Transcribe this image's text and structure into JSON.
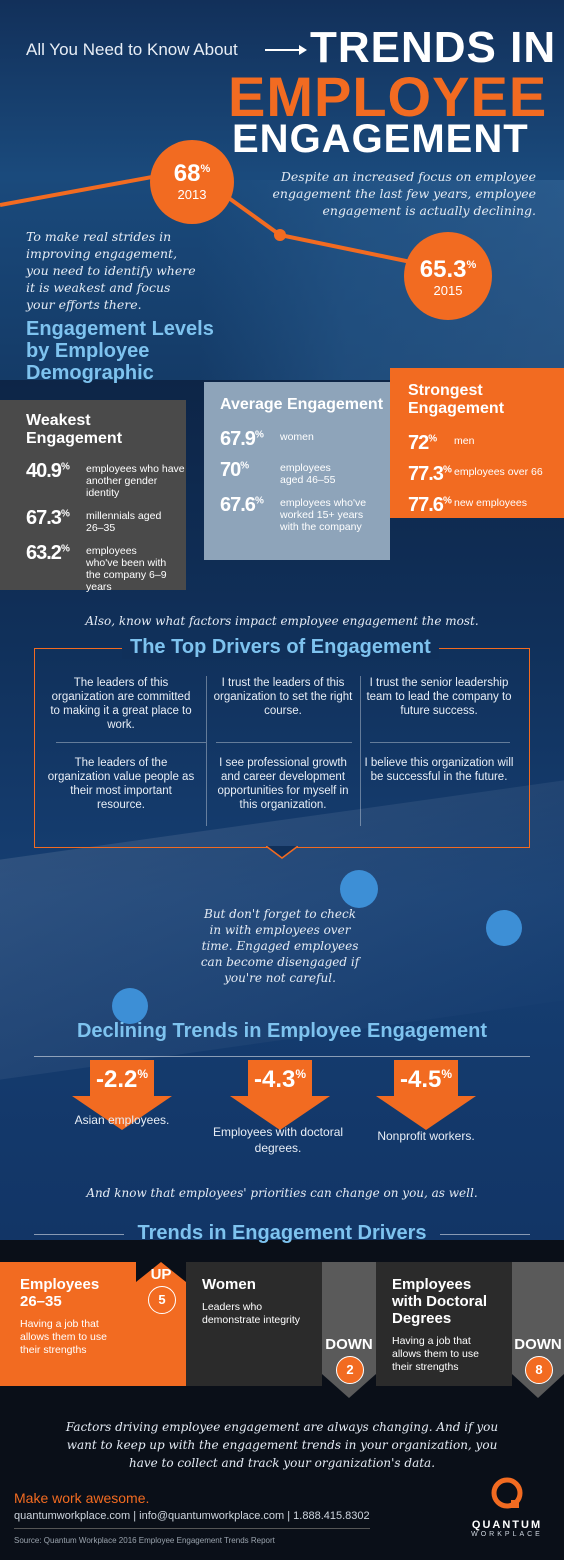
{
  "colors": {
    "orange": "#f26b21",
    "light_blue": "#7ec3ef",
    "gray": "#4a4a4a",
    "slate": "#8ea4ba",
    "dark": "#0a0f18"
  },
  "header": {
    "intro": "All You Need to Know About",
    "title_line1": "TRENDS IN",
    "title_line2": "EMPLOYEE",
    "title_line3": "ENGAGEMENT"
  },
  "hero": {
    "stat_2013_value": "68",
    "stat_2013_unit": "%",
    "stat_2013_year": "2013",
    "stat_2015_value": "65.3",
    "stat_2015_unit": "%",
    "stat_2015_year": "2015",
    "right_text": "Despite an increased focus on employee engagement the last few years, employee engagement is actually declining.",
    "left_text": "To make real strides in improving engagement, you need to identify where it is weakest and focus your efforts there."
  },
  "levels": {
    "title_line1": "Engagement Levels",
    "title_line2": "by Employee",
    "title_line3": "Demographic",
    "weakest": {
      "title": "Weakest Engagement",
      "items": [
        {
          "value": "40.9",
          "unit": "%",
          "label": "employees who have another gender identity"
        },
        {
          "value": "67.3",
          "unit": "%",
          "label": "millennials aged 26–35"
        },
        {
          "value": "63.2",
          "unit": "%",
          "label": "employees who've been with the company 6–9 years"
        }
      ]
    },
    "average": {
      "title": "Average Engagement",
      "items": [
        {
          "value": "67.9",
          "unit": "%",
          "label": "women"
        },
        {
          "value": "70",
          "unit": "%",
          "label": "employees aged 46–55"
        },
        {
          "value": "67.6",
          "unit": "%",
          "label": "employees who've worked 15+ years with the company"
        }
      ]
    },
    "strongest": {
      "title": "Strongest Engagement",
      "items": [
        {
          "value": "72",
          "unit": "%",
          "label": "men"
        },
        {
          "value": "77.3",
          "unit": "%",
          "label": "employees over 66"
        },
        {
          "value": "77.6",
          "unit": "%",
          "label": "new employees"
        }
      ]
    }
  },
  "drivers": {
    "lead_in": "Also, know what factors impact employee engagement the most.",
    "title": "The Top Drivers of Engagement",
    "items": [
      "The leaders of this organization are committed to making it a great place to work.",
      "I trust the leaders of this organization to set the right course.",
      "I trust the senior leadership team to lead the company to future success.",
      "The leaders of the organization value people as their most important resource.",
      "I see professional growth and career development opportunities for myself in this organization.",
      "I believe this organization will be successful in the future."
    ]
  },
  "checkin": "But don't forget to check in with employees over time. Engaged employees can become disengaged if you're not careful.",
  "declining": {
    "title": "Declining Trends in Employee Engagement",
    "items": [
      {
        "value": "-2.2",
        "unit": "%",
        "label": "Asian employees."
      },
      {
        "value": "-4.3",
        "unit": "%",
        "label": "Employees with doctoral degrees."
      },
      {
        "value": "-4.5",
        "unit": "%",
        "label": "Nonprofit workers."
      }
    ]
  },
  "priorities_text": "And know that employees' priorities can change on you, as well.",
  "trends": {
    "title": "Trends in Engagement Drivers",
    "cards": [
      {
        "title": "Employees 26–35",
        "text": "Having a job that allows them to use their strengths",
        "direction": "UP",
        "rank": "5"
      },
      {
        "title": "Women",
        "text": "Leaders who demonstrate integrity",
        "direction": "DOWN",
        "rank": "2"
      },
      {
        "title": "Employees with Doctoral Degrees",
        "text": "Having a job that allows them to use their strengths",
        "direction": "DOWN",
        "rank": "8"
      }
    ]
  },
  "footer": {
    "closing": "Factors driving employee engagement are always changing. And if you want to keep up with the engagement trends in your organization, you have to collect and track your organization's data.",
    "tagline": "Make work awesome.",
    "contact": "quantumworkplace.com | info@quantumworkplace.com | 1.888.415.8302",
    "source": "Source: Quantum Workplace 2016 Employee Engagement Trends Report",
    "logo_line1": "QUANTUM",
    "logo_line2": "WORKPLACE"
  }
}
